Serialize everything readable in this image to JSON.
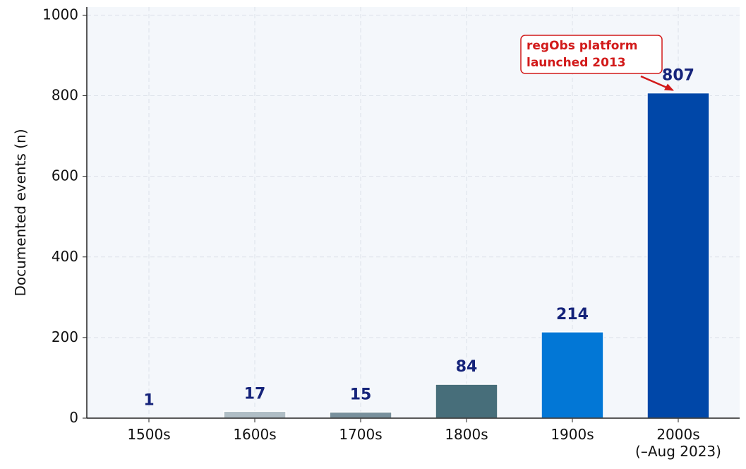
{
  "chart_data": {
    "type": "bar",
    "y_label": "Documented events (n)",
    "categories": [
      "1500s",
      "1600s",
      "1700s",
      "1800s",
      "1900s",
      "2000s\n(–Aug 2023)"
    ],
    "values": [
      1,
      17,
      15,
      84,
      214,
      807
    ],
    "colors": [
      "#cfd8dc",
      "#b0bec5",
      "#78909c",
      "#476e7a",
      "#0277d6",
      "#0047a8"
    ],
    "ylim": [
      0,
      1020
    ],
    "yticks": [
      0,
      200,
      400,
      600,
      800,
      1000
    ],
    "grid": true,
    "annotation": "regObs platform\nlaunched 2013"
  }
}
